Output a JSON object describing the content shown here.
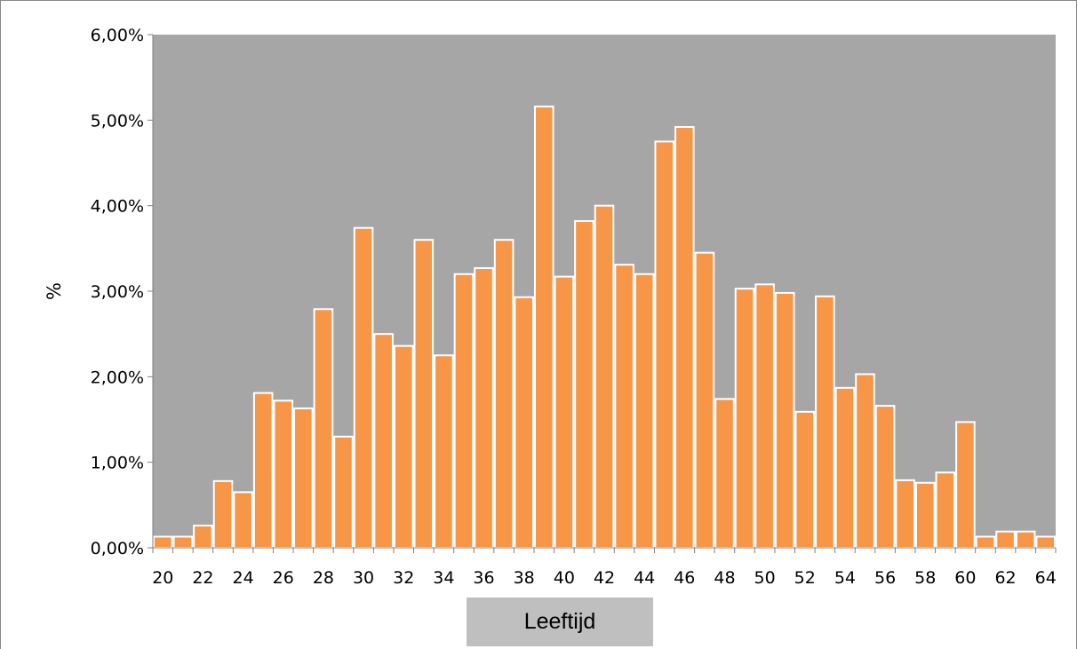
{
  "chart_data": {
    "type": "bar",
    "title": "",
    "xlabel": "Leeftijd",
    "ylabel": "%",
    "ylim": [
      0,
      6
    ],
    "yticks": [
      "0,00%",
      "1,00%",
      "2,00%",
      "3,00%",
      "4,00%",
      "5,00%",
      "6,00%"
    ],
    "xtick_labels": [
      "20",
      "22",
      "24",
      "26",
      "28",
      "30",
      "32",
      "34",
      "36",
      "38",
      "40",
      "42",
      "44",
      "46",
      "48",
      "50",
      "52",
      "54",
      "56",
      "58",
      "60",
      "62",
      "64"
    ],
    "categories": [
      20,
      21,
      22,
      23,
      24,
      25,
      26,
      27,
      28,
      29,
      30,
      31,
      32,
      33,
      34,
      35,
      36,
      37,
      38,
      39,
      40,
      41,
      42,
      43,
      44,
      45,
      46,
      47,
      48,
      49,
      50,
      51,
      52,
      53,
      54,
      55,
      56,
      57,
      58,
      59,
      60,
      61,
      62,
      63,
      64
    ],
    "values": [
      0.13,
      0.13,
      0.26,
      0.78,
      0.65,
      1.81,
      1.72,
      1.63,
      2.79,
      1.3,
      3.74,
      2.5,
      2.36,
      3.6,
      2.25,
      3.2,
      3.27,
      3.6,
      2.93,
      5.16,
      3.17,
      3.82,
      4.0,
      3.31,
      3.2,
      4.75,
      4.92,
      3.45,
      1.74,
      3.03,
      3.08,
      2.98,
      1.59,
      2.94,
      1.87,
      2.03,
      1.66,
      0.79,
      0.76,
      0.88,
      1.47,
      0.13,
      0.19,
      0.19,
      0.13
    ],
    "grid": false,
    "legend": "none",
    "colors": {
      "bar_fill": "#f79646",
      "bar_stroke": "#ffffff",
      "plot_background": "#a6a6a6",
      "xlabel_box": "#bfbfbf"
    }
  }
}
